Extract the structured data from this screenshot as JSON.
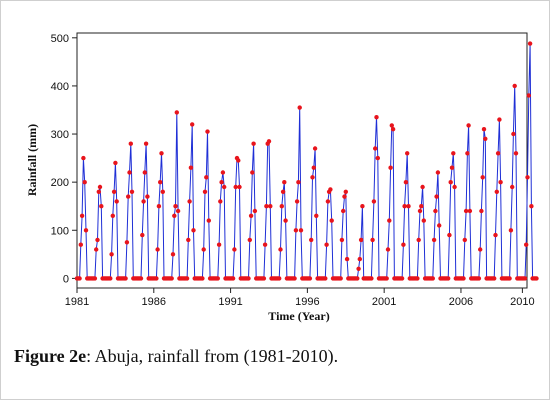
{
  "caption": {
    "figure_label": "Figure 2e",
    "text": ": Abuja, rainfall from (1981-2010)."
  },
  "colors": {
    "line": "#1f2fd6",
    "marker": "#e8141c",
    "axis": "#222222"
  },
  "chart_data": {
    "type": "line",
    "xlabel": "Time (Year)",
    "ylabel": "Rainfall (mm)",
    "xlim": [
      1981,
      2010.3
    ],
    "ylim": [
      -20,
      510
    ],
    "x_ticks": [
      1981,
      1986,
      1991,
      1996,
      2001,
      2006,
      2010
    ],
    "y_ticks": [
      0,
      100,
      200,
      300,
      400,
      500
    ],
    "start_year": 1981,
    "series": [
      {
        "marker": "dot",
        "values": [
          0,
          0,
          0,
          70,
          130,
          250,
          200,
          100,
          0,
          0,
          0,
          0,
          0,
          0,
          0,
          60,
          80,
          180,
          190,
          150,
          0,
          0,
          0,
          0,
          0,
          0,
          0,
          50,
          130,
          180,
          240,
          160,
          0,
          0,
          0,
          0,
          0,
          0,
          0,
          75,
          170,
          220,
          280,
          180,
          0,
          0,
          0,
          0,
          0,
          0,
          0,
          90,
          160,
          220,
          280,
          170,
          0,
          0,
          0,
          0,
          0,
          0,
          0,
          60,
          150,
          200,
          260,
          180,
          0,
          0,
          0,
          0,
          0,
          0,
          0,
          50,
          130,
          150,
          345,
          140,
          0,
          0,
          0,
          0,
          0,
          0,
          0,
          80,
          160,
          230,
          320,
          100,
          0,
          0,
          0,
          0,
          0,
          0,
          0,
          60,
          180,
          210,
          305,
          120,
          0,
          0,
          0,
          0,
          0,
          0,
          0,
          70,
          160,
          200,
          220,
          190,
          0,
          0,
          0,
          0,
          0,
          0,
          0,
          60,
          190,
          250,
          245,
          190,
          0,
          0,
          0,
          0,
          0,
          0,
          0,
          80,
          130,
          220,
          280,
          140,
          0,
          0,
          0,
          0,
          0,
          0,
          0,
          70,
          150,
          280,
          285,
          150,
          0,
          0,
          0,
          0,
          0,
          0,
          0,
          60,
          150,
          180,
          200,
          120,
          0,
          0,
          0,
          0,
          0,
          0,
          0,
          100,
          160,
          200,
          355,
          100,
          0,
          0,
          0,
          0,
          0,
          0,
          0,
          80,
          210,
          230,
          270,
          130,
          0,
          0,
          0,
          0,
          0,
          0,
          0,
          70,
          160,
          180,
          185,
          120,
          0,
          0,
          0,
          0,
          0,
          0,
          0,
          80,
          140,
          170,
          180,
          40,
          0,
          0,
          0,
          0,
          0,
          0,
          0,
          0,
          20,
          40,
          80,
          150,
          0,
          0,
          0,
          0,
          0,
          0,
          0,
          80,
          160,
          270,
          335,
          250,
          0,
          0,
          0,
          0,
          0,
          0,
          0,
          60,
          120,
          230,
          318,
          310,
          0,
          0,
          0,
          0,
          0,
          0,
          0,
          70,
          150,
          200,
          260,
          150,
          0,
          0,
          0,
          0,
          0,
          0,
          0,
          80,
          140,
          150,
          190,
          120,
          0,
          0,
          0,
          0,
          0,
          0,
          0,
          80,
          140,
          170,
          220,
          110,
          0,
          0,
          0,
          0,
          0,
          0,
          0,
          90,
          200,
          230,
          260,
          190,
          0,
          0,
          0,
          0,
          0,
          0,
          0,
          80,
          140,
          260,
          318,
          140,
          0,
          0,
          0,
          0,
          0,
          0,
          0,
          60,
          140,
          210,
          310,
          290,
          0,
          0,
          0,
          0,
          0,
          0,
          0,
          90,
          180,
          260,
          330,
          200,
          0,
          0,
          0,
          0,
          0,
          0,
          0,
          100,
          190,
          300,
          400,
          260,
          0,
          0,
          0,
          0,
          0,
          0,
          0,
          70,
          210,
          380,
          488,
          150,
          0,
          0,
          0,
          0
        ]
      }
    ]
  }
}
